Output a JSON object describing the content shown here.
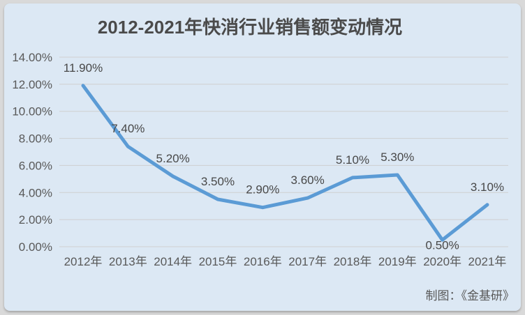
{
  "title": "2012-2021年快消行业销售额变动情况",
  "credit": "制图：《金基研》",
  "colors": {
    "page_bg": "#d9d9d9",
    "card_bg": "#dce8f4",
    "line": "#5b9bd5",
    "grid": "#cfcfcf",
    "axis_text": "#595959",
    "label_text": "#484848",
    "title_text": "#4a4a4a"
  },
  "chart_data": {
    "type": "line",
    "title": "2012-2021年快消行业销售额变动情况",
    "categories": [
      "2012年",
      "2013年",
      "2014年",
      "2015年",
      "2016年",
      "2017年",
      "2018年",
      "2019年",
      "2020年",
      "2021年"
    ],
    "values": [
      11.9,
      7.4,
      5.2,
      3.5,
      2.9,
      3.6,
      5.1,
      5.3,
      0.5,
      3.1
    ],
    "point_labels": [
      "11.90%",
      "7.40%",
      "5.20%",
      "3.50%",
      "2.90%",
      "3.60%",
      "5.10%",
      "5.30%",
      "0.50%",
      "3.10%"
    ],
    "labels_below_indices": [
      8
    ],
    "y_axis": {
      "ticks": [
        0,
        2,
        4,
        6,
        8,
        10,
        12,
        14
      ],
      "tick_labels": [
        "0.00%",
        "2.00%",
        "4.00%",
        "6.00%",
        "8.00%",
        "10.00%",
        "12.00%",
        "14.00%"
      ],
      "range": [
        0,
        14
      ]
    },
    "xlabel": "",
    "ylabel": "",
    "grid": true,
    "legend": "none",
    "line_width": 5,
    "markers": false
  }
}
